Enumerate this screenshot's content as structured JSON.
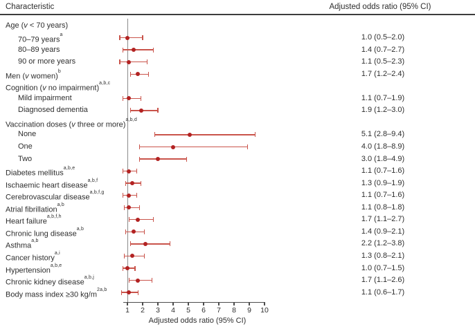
{
  "header": {
    "left": "Characteristic",
    "right": "Adjusted odds ratio (95% CI)"
  },
  "colors": {
    "bar": "#c9534a",
    "dot": "#b22222",
    "refline": "#8a8a8a",
    "axis": "#4b4b4b",
    "text": "#2e2e2e",
    "rule": "#3c3c3c"
  },
  "chart_data": {
    "type": "scatter",
    "variant": "forest-plot",
    "title": "",
    "xlabel": "Adjusted odds ratio (95% CI)",
    "xlim": [
      1,
      10
    ],
    "x_ticks": [
      "1",
      "2",
      "3",
      "4",
      "5",
      "6",
      "7",
      "8",
      "9",
      "10"
    ],
    "grid": false,
    "reference_line_x": 1,
    "rows": [
      {
        "label": [
          {
            "t": "Age ("
          },
          {
            "t": "v",
            "k": "i"
          },
          {
            "t": " < 70 years)"
          }
        ],
        "indent": 0,
        "group": true
      },
      {
        "label": [
          {
            "t": "70–79 years"
          },
          {
            "t": "a",
            "k": "sup"
          }
        ],
        "indent": 1,
        "or": 1.0,
        "low": 0.5,
        "high": 2.0,
        "value_text": "1.0 (0.5–2.0)"
      },
      {
        "label": [
          {
            "t": "80–89 years"
          }
        ],
        "indent": 1,
        "or": 1.4,
        "low": 0.7,
        "high": 2.7,
        "value_text": "1.4 (0.7–2.7)"
      },
      {
        "label": [
          {
            "t": "90 or more years"
          }
        ],
        "indent": 1,
        "or": 1.1,
        "low": 0.5,
        "high": 2.3,
        "value_text": "1.1 (0.5–2.3)"
      },
      {
        "label": [
          {
            "t": "Men ("
          },
          {
            "t": "v",
            "k": "i"
          },
          {
            "t": " women)"
          },
          {
            "t": "b",
            "k": "sup"
          }
        ],
        "indent": 0,
        "or": 1.7,
        "low": 1.2,
        "high": 2.4,
        "value_text": "1.7 (1.2–2.4)"
      },
      {
        "label": [
          {
            "t": "Cognition ("
          },
          {
            "t": "v",
            "k": "i"
          },
          {
            "t": " no impairment)"
          },
          {
            "t": "a,b,c",
            "k": "sup"
          }
        ],
        "indent": 0,
        "group": true
      },
      {
        "label": [
          {
            "t": "Mild impairment"
          }
        ],
        "indent": 1,
        "or": 1.1,
        "low": 0.7,
        "high": 1.9,
        "value_text": "1.1 (0.7–1.9)"
      },
      {
        "label": [
          {
            "t": "Diagnosed dementia"
          }
        ],
        "indent": 1,
        "or": 1.9,
        "low": 1.2,
        "high": 3.0,
        "value_text": "1.9 (1.2–3.0)"
      },
      {
        "label": [
          {
            "t": "Vaccination doses ("
          },
          {
            "t": "v",
            "k": "i"
          },
          {
            "t": " three or more)"
          },
          {
            "t": "a,b,d",
            "k": "sup"
          }
        ],
        "indent": 0,
        "group": true
      },
      {
        "label": [
          {
            "t": "None"
          }
        ],
        "indent": 1,
        "or": 5.1,
        "low": 2.8,
        "high": 9.4,
        "value_text": "5.1 (2.8–9.4)"
      },
      {
        "label": [
          {
            "t": "One"
          }
        ],
        "indent": 1,
        "or": 4.0,
        "low": 1.8,
        "high": 8.9,
        "value_text": "4.0 (1.8–8.9)"
      },
      {
        "label": [
          {
            "t": "Two"
          }
        ],
        "indent": 1,
        "or": 3.0,
        "low": 1.8,
        "high": 4.9,
        "value_text": "3.0 (1.8–4.9)"
      },
      {
        "label": [
          {
            "t": "Diabetes mellitus"
          },
          {
            "t": "a,b,e",
            "k": "sup"
          }
        ],
        "indent": 0,
        "or": 1.1,
        "low": 0.7,
        "high": 1.6,
        "value_text": "1.1 (0.7–1.6)"
      },
      {
        "label": [
          {
            "t": "Ischaemic heart disease"
          },
          {
            "t": "a,b,f",
            "k": "sup"
          }
        ],
        "indent": 0,
        "or": 1.3,
        "low": 0.9,
        "high": 1.9,
        "value_text": "1.3 (0.9–1.9)"
      },
      {
        "label": [
          {
            "t": "Cerebrovascular disease"
          },
          {
            "t": "a,b,f,g",
            "k": "sup"
          }
        ],
        "indent": 0,
        "or": 1.1,
        "low": 0.7,
        "high": 1.6,
        "value_text": "1.1 (0.7–1.6)"
      },
      {
        "label": [
          {
            "t": "Atrial fibrillation"
          },
          {
            "t": "a,b",
            "k": "sup"
          }
        ],
        "indent": 0,
        "or": 1.1,
        "low": 0.8,
        "high": 1.8,
        "value_text": "1.1 (0.8–1.8)"
      },
      {
        "label": [
          {
            "t": "Heart failure"
          },
          {
            "t": "a,b,f,h",
            "k": "sup"
          }
        ],
        "indent": 0,
        "or": 1.7,
        "low": 1.1,
        "high": 2.7,
        "value_text": "1.7 (1.1–2.7)"
      },
      {
        "label": [
          {
            "t": "Chronic lung disease"
          },
          {
            "t": "a,b",
            "k": "sup"
          }
        ],
        "indent": 0,
        "or": 1.4,
        "low": 0.9,
        "high": 2.1,
        "value_text": "1.4 (0.9–2.1)"
      },
      {
        "label": [
          {
            "t": "Asthma"
          },
          {
            "t": "a,b",
            "k": "sup"
          }
        ],
        "indent": 0,
        "or": 2.2,
        "low": 1.2,
        "high": 3.8,
        "value_text": "2.2 (1.2–3.8)"
      },
      {
        "label": [
          {
            "t": "Cancer history"
          },
          {
            "t": "a,i",
            "k": "sup"
          }
        ],
        "indent": 0,
        "or": 1.3,
        "low": 0.8,
        "high": 2.1,
        "value_text": "1.3 (0.8–2.1)"
      },
      {
        "label": [
          {
            "t": "Hypertension"
          },
          {
            "t": "a,b,e",
            "k": "sup"
          }
        ],
        "indent": 0,
        "or": 1.0,
        "low": 0.7,
        "high": 1.5,
        "value_text": "1.0 (0.7–1.5)"
      },
      {
        "label": [
          {
            "t": "Chronic kidney disease"
          },
          {
            "t": "a,b,j",
            "k": "sup"
          }
        ],
        "indent": 0,
        "or": 1.7,
        "low": 1.1,
        "high": 2.6,
        "value_text": "1.7 (1.1–2.6)"
      },
      {
        "label": [
          {
            "t": "Body mass index ≥30 kg/m"
          },
          {
            "t": "2a,b",
            "k": "sup"
          }
        ],
        "indent": 0,
        "or": 1.1,
        "low": 0.6,
        "high": 1.7,
        "value_text": "1.1 (0.6–1.7)"
      }
    ]
  }
}
